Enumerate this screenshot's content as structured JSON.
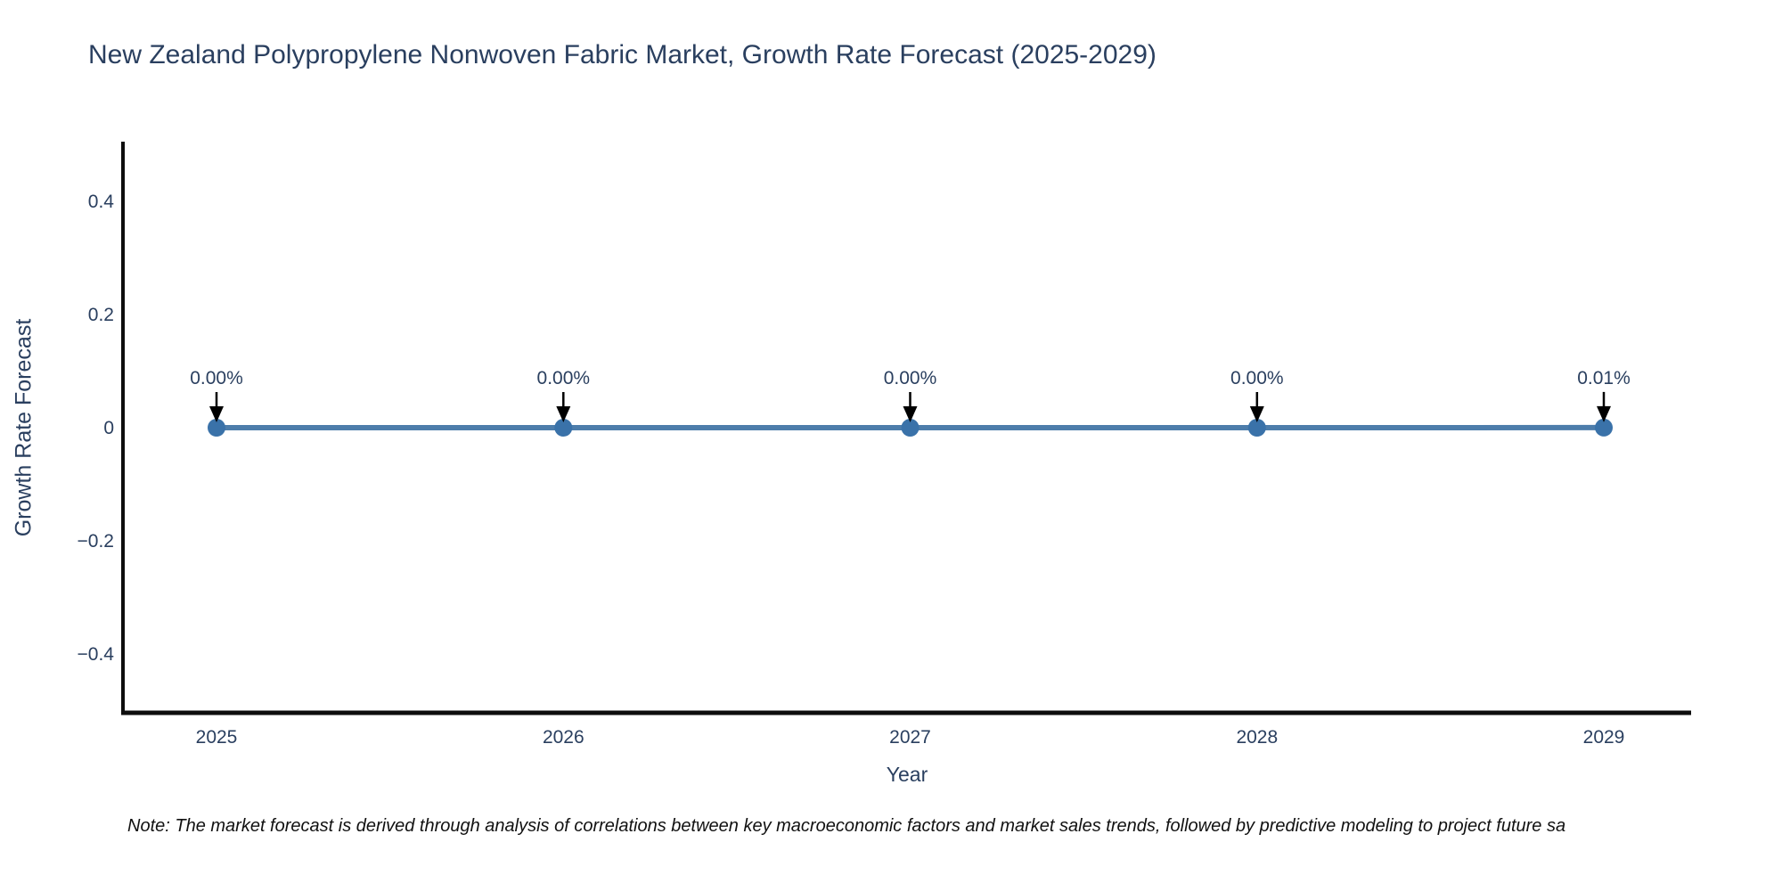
{
  "title": "New Zealand Polypropylene Nonwoven Fabric Market, Growth Rate Forecast (2025-2029)",
  "note": "Note: The market forecast is derived through analysis of correlations between key macroeconomic factors and market sales trends, followed by predictive modeling to project future sa",
  "colors": {
    "title_text": "#2a3f5f",
    "axis_text": "#2a3f5f",
    "series_line": "#4d7dab",
    "marker_fill": "#3a72a9",
    "axis_line": "#0d0d0d",
    "annotation_arrow": "#000000",
    "background": "#ffffff"
  },
  "chart_data": {
    "type": "line",
    "title": "New Zealand Polypropylene Nonwoven Fabric Market, Growth Rate Forecast (2025-2029)",
    "xlabel": "Year",
    "ylabel": "Growth Rate Forecast",
    "x": [
      2025,
      2026,
      2027,
      2028,
      2029
    ],
    "values": [
      0.0,
      0.0,
      0.0,
      0.0,
      0.0001
    ],
    "point_labels": [
      "0.00%",
      "0.00%",
      "0.00%",
      "0.00%",
      "0.01%"
    ],
    "xtick_labels": [
      "2025",
      "2026",
      "2027",
      "2028",
      "2029"
    ],
    "yticks": [
      0.4,
      0.2,
      0,
      -0.2,
      -0.4
    ],
    "ytick_labels": [
      "0.4",
      "0.2",
      "0",
      "−0.2",
      "−0.4"
    ],
    "ylim": [
      -0.5,
      0.5
    ],
    "grid": false,
    "legend_position": "none",
    "annotation_style": "value label with downward arrow to each data point"
  }
}
